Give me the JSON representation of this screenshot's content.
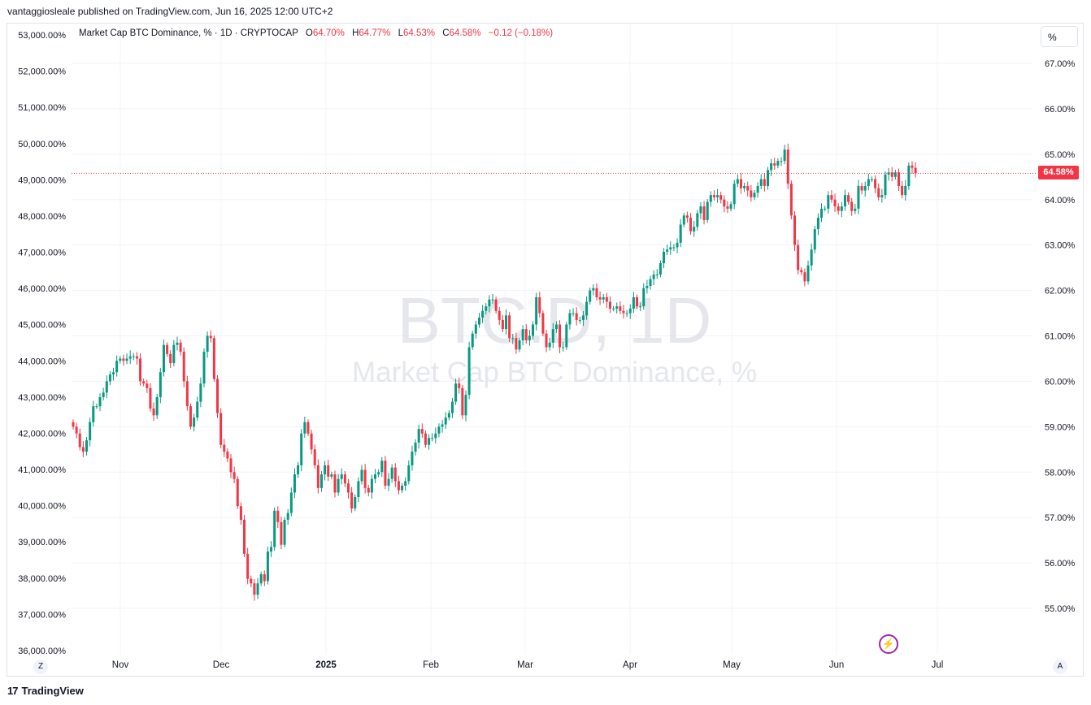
{
  "attribution": "vantaggiosleale published on TradingView.com, Jun 16, 2025 12:00 UTC+2",
  "legend": {
    "name": "Market Cap BTC Dominance, % · 1D · CRYPTOCAP",
    "o_label": "O",
    "o_value": "64.70%",
    "h_label": "H",
    "h_value": "64.77%",
    "l_label": "L",
    "l_value": "64.53%",
    "c_label": "C",
    "c_value": "64.58%",
    "change": "−0.12 (−0.18%)"
  },
  "unit_button": "%",
  "last_price_label": "64.58%",
  "watermark": {
    "symbol": "BTC.D, 1D",
    "description": "Market Cap BTC Dominance, %"
  },
  "scale_buttons": {
    "left": "Z",
    "right": "A"
  },
  "brand": {
    "logo": "17",
    "name": "TradingView"
  },
  "icons": {
    "bolt": "lightning-icon",
    "logo": "tradingview-logo-icon"
  },
  "colors": {
    "up": "#089981",
    "down": "#f23645",
    "last_line": "#f23645",
    "grid": "#f0f3fa"
  },
  "chart_data": {
    "type": "candlestick",
    "title": "Market Cap BTC Dominance, % · 1D · CRYPTOCAP",
    "right_axis": {
      "ticks": [
        "67.00%",
        "66.00%",
        "65.00%",
        "64.00%",
        "63.00%",
        "62.00%",
        "61.00%",
        "60.00%",
        "59.00%",
        "58.00%",
        "57.00%",
        "56.00%",
        "55.00%"
      ],
      "ylim": [
        54.3,
        67.0
      ]
    },
    "left_axis": {
      "ticks": [
        "53,000.00%",
        "52,000.00%",
        "51,000.00%",
        "50,000.00%",
        "49,000.00%",
        "48,000.00%",
        "47,000.00%",
        "46,000.00%",
        "45,000.00%",
        "44,000.00%",
        "43,000.00%",
        "42,000.00%",
        "41,000.00%",
        "40,000.00%",
        "39,000.00%",
        "38,000.00%",
        "37,000.00%",
        "36,000.00%"
      ]
    },
    "x_axis": {
      "ticks": [
        "Nov",
        "Dec",
        "2025",
        "Feb",
        "Mar",
        "Apr",
        "May",
        "Jun",
        "Jul"
      ],
      "bold": [
        "2025"
      ]
    },
    "last_value": 64.58,
    "closes": [
      59.0,
      58.85,
      58.55,
      58.45,
      58.7,
      59.1,
      59.45,
      59.45,
      59.65,
      59.75,
      60.0,
      60.15,
      60.2,
      60.45,
      60.5,
      60.45,
      60.5,
      60.55,
      60.55,
      60.5,
      60.0,
      59.95,
      59.85,
      59.4,
      59.25,
      59.65,
      60.2,
      60.8,
      60.6,
      60.4,
      60.8,
      60.85,
      60.65,
      60.0,
      59.45,
      59.0,
      59.2,
      59.55,
      59.95,
      60.65,
      61.0,
      60.95,
      60.05,
      59.3,
      58.6,
      58.45,
      58.3,
      58.0,
      57.85,
      57.25,
      56.95,
      56.2,
      55.65,
      55.55,
      55.3,
      55.55,
      55.75,
      55.6,
      56.25,
      56.35,
      57.15,
      56.9,
      56.4,
      56.95,
      57.1,
      57.55,
      57.95,
      58.15,
      58.85,
      59.1,
      58.85,
      58.5,
      58.15,
      57.65,
      57.95,
      58.15,
      57.9,
      57.95,
      57.55,
      57.85,
      57.95,
      57.75,
      57.55,
      57.2,
      57.45,
      57.8,
      58.05,
      57.65,
      57.55,
      57.85,
      57.95,
      58.0,
      58.25,
      57.7,
      57.85,
      58.1,
      57.8,
      57.6,
      57.7,
      57.8,
      58.15,
      58.45,
      58.65,
      58.95,
      58.85,
      58.6,
      58.75,
      58.75,
      58.85,
      59.0,
      59.05,
      59.2,
      59.3,
      59.55,
      59.95,
      59.85,
      59.25,
      59.7,
      60.75,
      61.05,
      61.25,
      61.4,
      61.55,
      61.65,
      61.8,
      61.8,
      61.55,
      61.35,
      61.15,
      61.45,
      60.95,
      60.95,
      60.7,
      60.9,
      61.15,
      60.9,
      61.0,
      61.25,
      61.85,
      61.5,
      61.05,
      60.75,
      60.85,
      61.15,
      61.25,
      60.75,
      60.75,
      61.25,
      61.5,
      61.5,
      61.35,
      61.35,
      61.45,
      61.75,
      62.0,
      62.05,
      61.85,
      61.8,
      61.85,
      61.75,
      61.6,
      61.6,
      61.65,
      61.55,
      61.5,
      61.5,
      61.6,
      61.85,
      61.65,
      61.65,
      62.05,
      62.1,
      62.25,
      62.35,
      62.35,
      62.6,
      62.85,
      62.9,
      62.95,
      62.95,
      63.05,
      63.45,
      63.65,
      63.6,
      63.3,
      63.4,
      63.7,
      63.85,
      63.55,
      63.95,
      64.1,
      64.05,
      64.1,
      64.0,
      63.85,
      63.8,
      63.9,
      64.35,
      64.45,
      64.25,
      64.3,
      64.2,
      64.05,
      64.15,
      64.3,
      64.45,
      64.3,
      64.65,
      64.8,
      64.75,
      64.85,
      64.85,
      65.1,
      64.35,
      63.65,
      63.0,
      62.45,
      62.4,
      62.2,
      62.55,
      62.9,
      63.35,
      63.6,
      63.8,
      63.8,
      64.1,
      64.0,
      63.85,
      63.75,
      63.85,
      64.1,
      63.95,
      63.75,
      63.8,
      64.3,
      64.2,
      64.3,
      64.45,
      64.45,
      64.25,
      64.05,
      64.1,
      64.55,
      64.6,
      64.5,
      64.6,
      64.3,
      64.1,
      64.3,
      64.75,
      64.7,
      64.58
    ],
    "first_open": 59.1
  }
}
